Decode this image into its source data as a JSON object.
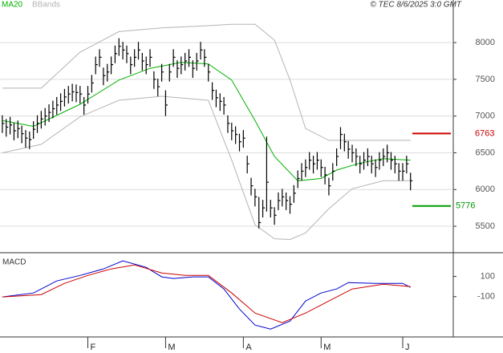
{
  "header": {
    "legend": [
      "MA20",
      "BBands"
    ],
    "stamp": "© TEC 8/6/2025 3:0 GMT"
  },
  "chart_data": [
    {
      "type": "ohlc",
      "color": "#000000",
      "xlim": [
        -0.6,
        116
      ],
      "ylim": [
        5140,
        8580
      ],
      "yticks": [
        5500,
        6000,
        6500,
        7000,
        7500,
        8000
      ],
      "grid": true,
      "x": [
        0,
        1,
        2,
        3,
        4,
        5,
        6,
        7,
        8,
        9,
        10,
        11,
        12,
        13,
        14,
        15,
        16,
        17,
        18,
        19,
        20,
        21,
        22,
        23,
        24,
        25,
        26,
        27,
        28,
        29,
        30,
        31,
        32,
        33,
        34,
        35,
        36,
        37,
        38,
        39,
        40,
        41,
        42,
        43,
        44,
        45,
        46,
        47,
        48,
        49,
        50,
        51,
        52,
        53,
        54,
        55,
        56,
        57,
        58,
        59,
        60,
        61,
        62,
        63,
        64,
        65,
        66,
        67,
        68,
        69,
        70,
        71,
        72,
        73,
        74,
        75,
        76,
        77,
        78,
        79,
        80,
        81,
        82,
        83,
        84,
        85,
        86,
        87,
        88,
        89,
        90,
        91,
        92,
        93,
        94,
        95,
        96,
        97,
        98,
        99,
        100,
        101,
        102,
        103,
        104,
        105
      ],
      "high": [
        7010,
        6960,
        6990,
        6910,
        6940,
        6870,
        6810,
        6790,
        6930,
        7010,
        7070,
        7110,
        7160,
        7210,
        7260,
        7310,
        7370,
        7410,
        7440,
        7430,
        7410,
        7260,
        7410,
        7560,
        7810,
        7910,
        7660,
        7710,
        7810,
        7960,
        8060,
        8010,
        7960,
        7810,
        7910,
        8010,
        7860,
        7810,
        7910,
        7610,
        7510,
        7710,
        7350,
        7710,
        7910,
        7760,
        7810,
        7860,
        7910,
        7760,
        7860,
        8010,
        7910,
        7710,
        7460,
        7360,
        7310,
        7260,
        7010,
        6910,
        6860,
        6760,
        6810,
        6460,
        6160,
        6010,
        5900,
        5860,
        6720,
        5860,
        5760,
        5960,
        6010,
        5960,
        5910,
        6060,
        6260,
        6360,
        6410,
        6510,
        6460,
        6510,
        6410,
        6310,
        6160,
        6360,
        6560,
        6850,
        6760,
        6660,
        6610,
        6560,
        6460,
        6510,
        6560,
        6460,
        6410,
        6510,
        6560,
        6610,
        6510,
        6460,
        6360,
        6360,
        6460,
        6230
      ],
      "low": [
        6770,
        6720,
        6750,
        6670,
        6700,
        6630,
        6570,
        6550,
        6690,
        6770,
        6830,
        6870,
        6920,
        6970,
        7020,
        7070,
        7130,
        7170,
        7200,
        7190,
        7170,
        7020,
        7170,
        7320,
        7570,
        7670,
        7420,
        7470,
        7570,
        7720,
        7820,
        7770,
        7720,
        7570,
        7670,
        7770,
        7620,
        7570,
        7670,
        7370,
        7270,
        7470,
        7000,
        7470,
        7670,
        7520,
        7570,
        7620,
        7670,
        7520,
        7620,
        7770,
        7670,
        7470,
        7220,
        7120,
        7070,
        7020,
        6770,
        6670,
        6620,
        6520,
        6570,
        6220,
        5920,
        5770,
        5470,
        5620,
        5700,
        5620,
        5520,
        5720,
        5770,
        5720,
        5670,
        5820,
        6020,
        6120,
        6170,
        6270,
        6220,
        6270,
        6170,
        6070,
        5920,
        6120,
        6320,
        6550,
        6520,
        6420,
        6370,
        6320,
        6220,
        6270,
        6320,
        6220,
        6170,
        6270,
        6320,
        6370,
        6270,
        6220,
        6120,
        6120,
        6220,
        5990
      ],
      "close": [
        6900,
        6850,
        6880,
        6800,
        6830,
        6760,
        6700,
        6680,
        6820,
        6900,
        6960,
        7000,
        7050,
        7100,
        7150,
        7200,
        7260,
        7300,
        7330,
        7320,
        7300,
        7150,
        7300,
        7450,
        7700,
        7800,
        7550,
        7600,
        7700,
        7850,
        7950,
        7900,
        7850,
        7700,
        7800,
        7900,
        7750,
        7700,
        7800,
        7500,
        7400,
        7600,
        7150,
        7600,
        7800,
        7650,
        7700,
        7750,
        7800,
        7650,
        7750,
        7900,
        7800,
        7600,
        7350,
        7250,
        7200,
        7150,
        6900,
        6800,
        6750,
        6650,
        6700,
        6350,
        6050,
        5900,
        5550,
        5750,
        6100,
        5750,
        5650,
        5850,
        5900,
        5850,
        5800,
        5950,
        6150,
        6250,
        6300,
        6400,
        6350,
        6400,
        6300,
        6200,
        6050,
        6250,
        6450,
        6750,
        6650,
        6550,
        6500,
        6450,
        6350,
        6400,
        6450,
        6350,
        6300,
        6400,
        6450,
        6500,
        6400,
        6350,
        6250,
        6250,
        6350,
        6120
      ],
      "series": [
        {
          "name": "MA20",
          "color": "#00b000",
          "x": [
            0,
            8,
            20,
            30,
            38,
            46,
            53,
            59,
            65,
            70,
            76,
            82,
            86,
            92,
            98,
            105
          ],
          "values": [
            6940,
            6860,
            7160,
            7490,
            7650,
            7730,
            7710,
            7490,
            6940,
            6450,
            6120,
            6150,
            6265,
            6360,
            6420,
            6400
          ]
        },
        {
          "name": "BBands",
          "color": "#b4b4b4",
          "x": [
            0,
            10,
            20,
            30,
            41,
            53,
            59,
            65,
            70,
            74,
            78,
            84,
            90,
            98,
            105
          ],
          "values": [
            7380,
            7380,
            7870,
            8150,
            8200,
            8230,
            8250,
            8250,
            8035,
            7490,
            6830,
            6670,
            6670,
            6670,
            6670
          ],
          "lower": [
            6500,
            6615,
            6990,
            7215,
            7270,
            7215,
            6400,
            5520,
            5330,
            5320,
            5410,
            5740,
            6010,
            6120,
            6120
          ]
        }
      ],
      "levels": [
        {
          "value": 6763,
          "color": "#cc0000"
        },
        {
          "value": 5776,
          "color": "#009900"
        }
      ]
    },
    {
      "type": "line",
      "title": "MACD",
      "xlim": [
        -0.6,
        116
      ],
      "ylim": [
        -500,
        320
      ],
      "yticks": [
        100,
        -100
      ],
      "xticks": [
        {
          "value": 22,
          "label": "F"
        },
        {
          "value": 42,
          "label": "M"
        },
        {
          "value": 62,
          "label": "A"
        },
        {
          "value": 82,
          "label": "M"
        },
        {
          "value": 103,
          "label": "J"
        }
      ],
      "series": [
        {
          "color": "#0000cc",
          "x": [
            0,
            8,
            14,
            20,
            26,
            31,
            37,
            41,
            44,
            49,
            53,
            57,
            61,
            65,
            69,
            74,
            78,
            82,
            86,
            89,
            96,
            103,
            105
          ],
          "values": [
            -103,
            -64,
            56,
            111,
            175,
            255,
            191,
            96,
            80,
            96,
            96,
            -24,
            -223,
            -382,
            -422,
            -342,
            -143,
            -64,
            -24,
            40,
            32,
            32,
            -8
          ]
        },
        {
          "color": "#cc0000",
          "x": [
            0,
            10,
            16,
            22,
            28,
            34,
            41,
            47,
            53,
            59,
            65,
            72,
            78,
            84,
            90,
            98,
            105
          ],
          "values": [
            -103,
            -80,
            32,
            111,
            175,
            215,
            135,
            111,
            111,
            -64,
            -263,
            -358,
            -263,
            -143,
            -24,
            24,
            0
          ]
        }
      ]
    }
  ]
}
